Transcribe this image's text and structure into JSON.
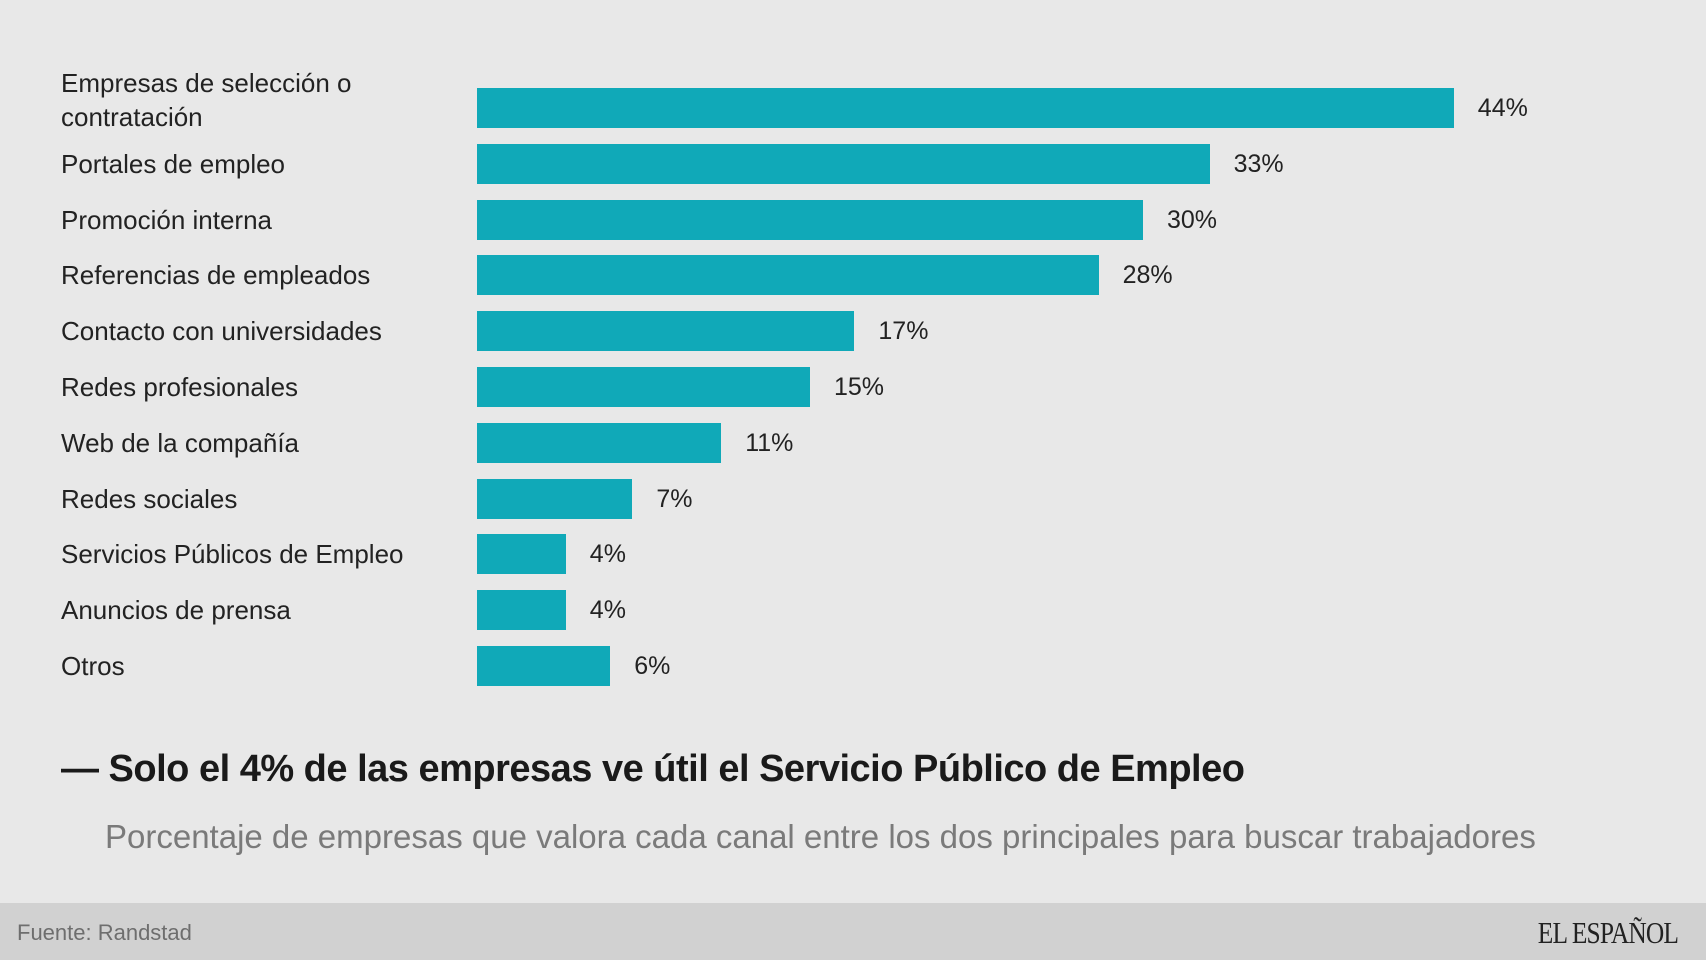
{
  "chart_data": {
    "type": "bar",
    "orientation": "horizontal",
    "title": "Solo el 4% de las empresas ve útil el Servicio Público de Empleo",
    "subtitle": "Porcentaje de empresas que valora cada canal entre los dos principales para buscar trabajadores",
    "xlabel": "",
    "ylabel": "",
    "unit": "%",
    "grid": false,
    "color": "#10a9b8",
    "xlim": [
      0,
      44
    ],
    "categories": [
      "Empresas de selección o contratación",
      "Portales de empleo",
      "Promoción interna",
      "Referencias de empleados",
      "Contacto con universidades",
      "Redes profesionales",
      "Web de la compañía",
      "Redes sociales",
      "Servicios Públicos de Empleo",
      "Anuncios de prensa",
      "Otros"
    ],
    "values": [
      44,
      33,
      30,
      28,
      17,
      15,
      11,
      7,
      4,
      4,
      6
    ],
    "value_labels": [
      "44%",
      "33%",
      "30%",
      "28%",
      "17%",
      "15%",
      "11%",
      "7%",
      "4%",
      "4%",
      "6%"
    ]
  },
  "headline": "— Solo el 4% de las empresas ve útil el Servicio Público de Empleo",
  "subtitle": "Porcentaje de empresas que valora cada canal entre los dos principales para buscar trabajadores",
  "footer": {
    "source": "Fuente: Randstad",
    "logo": "EL ESPAÑOL"
  }
}
